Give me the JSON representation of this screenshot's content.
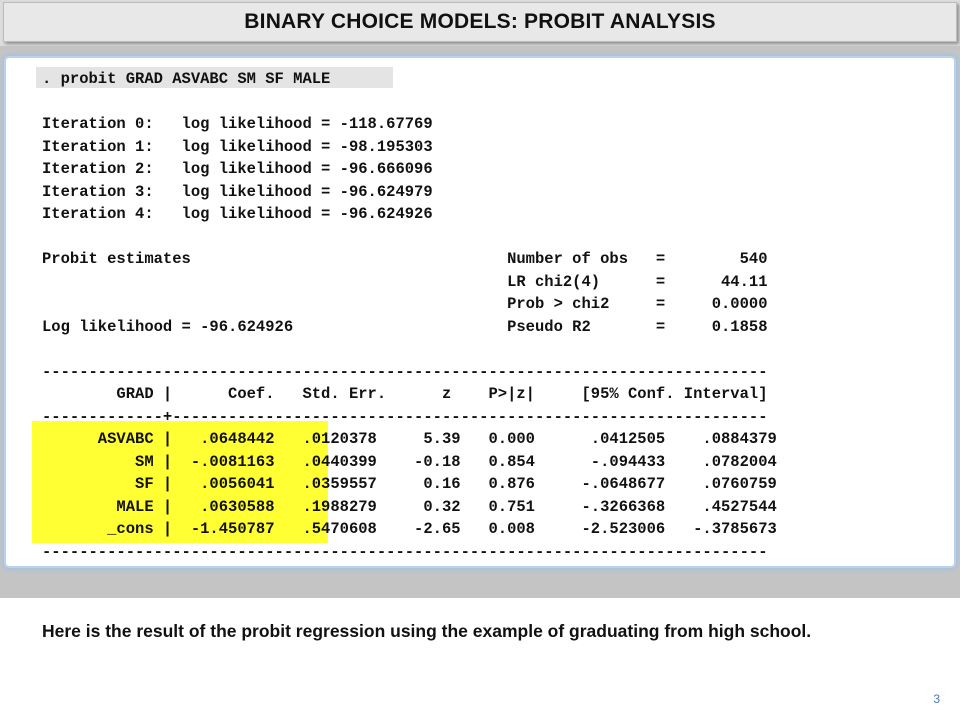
{
  "title": "BINARY CHOICE MODELS: PROBIT ANALYSIS",
  "output": {
    "command": ". probit GRAD ASVABC SM SF MALE",
    "lines": [
      "",
      "Iteration 0:   log likelihood = -118.67769",
      "Iteration 1:   log likelihood = -98.195303",
      "Iteration 2:   log likelihood = -96.666096",
      "Iteration 3:   log likelihood = -96.624979",
      "Iteration 4:   log likelihood = -96.624926",
      "",
      "Probit estimates                                  Number of obs   =        540",
      "                                                  LR chi2(4)      =      44.11",
      "                                                  Prob > chi2     =     0.0000",
      "Log likelihood = -96.624926                       Pseudo R2       =     0.1858",
      "",
      "------------------------------------------------------------------------------",
      "        GRAD |      Coef.   Std. Err.      z    P>|z|     [95% Conf. Interval]",
      "-------------+----------------------------------------------------------------",
      "      ASVABC |   .0648442   .0120378     5.39   0.000      .0412505    .0884379",
      "          SM |  -.0081163   .0440399    -0.18   0.854      -.094433    .0782004",
      "          SF |   .0056041   .0359557     0.16   0.876     -.0648677    .0760759",
      "        MALE |   .0630588   .1988279     0.32   0.751     -.3266368    .4527544",
      "       _cons |  -1.450787   .5470608    -2.65   0.008     -2.523006   -.3785673",
      "------------------------------------------------------------------------------"
    ]
  },
  "caption": "Here is the result of the probit regression using the example of graduating from high school.",
  "page_number": "3",
  "colors": {
    "highlight": "#ffff33",
    "panel_glow": "#9dc0e6",
    "band": "#c4c4c4"
  }
}
